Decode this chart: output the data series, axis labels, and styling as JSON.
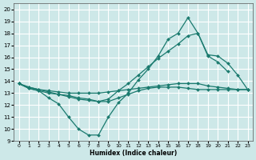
{
  "xlabel": "Humidex (Indice chaleur)",
  "background_color": "#cde8e8",
  "grid_color": "#ffffff",
  "line_color": "#1a7a6e",
  "ylim": [
    9,
    20.5
  ],
  "xlim": [
    -0.5,
    23.5
  ],
  "yticks": [
    9,
    10,
    11,
    12,
    13,
    14,
    15,
    16,
    17,
    18,
    19,
    20
  ],
  "xticks": [
    0,
    1,
    2,
    3,
    4,
    5,
    6,
    7,
    8,
    9,
    10,
    11,
    12,
    13,
    14,
    15,
    16,
    17,
    18,
    19,
    20,
    21,
    22,
    23
  ],
  "line1_x": [
    0,
    1,
    2,
    3,
    4,
    5,
    6,
    7,
    8,
    9,
    10,
    11,
    12,
    13,
    14,
    15,
    16,
    17,
    18,
    19,
    20,
    21
  ],
  "line1_y": [
    13.8,
    13.4,
    13.2,
    12.6,
    12.1,
    11.0,
    10.0,
    9.5,
    9.5,
    11.0,
    12.2,
    13.0,
    14.1,
    15.0,
    16.1,
    17.5,
    18.0,
    19.3,
    18.0,
    16.1,
    15.6,
    14.8
  ],
  "line2_x": [
    0,
    1,
    2,
    3,
    4,
    5,
    6,
    7,
    8,
    9,
    10,
    11,
    12,
    13,
    14,
    15,
    16,
    17,
    18,
    19,
    20,
    21,
    22,
    23
  ],
  "line2_y": [
    13.8,
    13.5,
    13.3,
    13.2,
    13.1,
    13.0,
    13.0,
    13.0,
    13.0,
    13.1,
    13.2,
    13.3,
    13.4,
    13.5,
    13.6,
    13.7,
    13.8,
    13.8,
    13.8,
    13.6,
    13.5,
    13.4,
    13.3,
    13.3
  ],
  "line3_x": [
    0,
    1,
    2,
    3,
    4,
    5,
    6,
    7,
    8,
    9,
    10,
    11,
    12,
    13,
    14,
    15,
    16,
    17,
    18,
    19,
    20,
    21,
    22,
    23
  ],
  "line3_y": [
    13.8,
    13.4,
    13.2,
    13.0,
    12.9,
    12.7,
    12.5,
    12.4,
    12.3,
    12.5,
    13.2,
    13.8,
    14.5,
    15.2,
    15.9,
    16.5,
    17.1,
    17.8,
    18.0,
    16.2,
    16.1,
    15.5,
    14.5,
    13.3
  ],
  "line4_x": [
    0,
    1,
    2,
    3,
    4,
    5,
    6,
    7,
    8,
    9,
    10,
    11,
    12,
    13,
    14,
    15,
    16,
    17,
    18,
    19,
    20,
    21,
    22,
    23
  ],
  "line4_y": [
    13.8,
    13.5,
    13.3,
    13.1,
    12.9,
    12.8,
    12.6,
    12.5,
    12.3,
    12.3,
    12.6,
    12.9,
    13.2,
    13.4,
    13.5,
    13.5,
    13.5,
    13.4,
    13.3,
    13.3,
    13.3,
    13.3,
    13.3,
    13.3
  ]
}
